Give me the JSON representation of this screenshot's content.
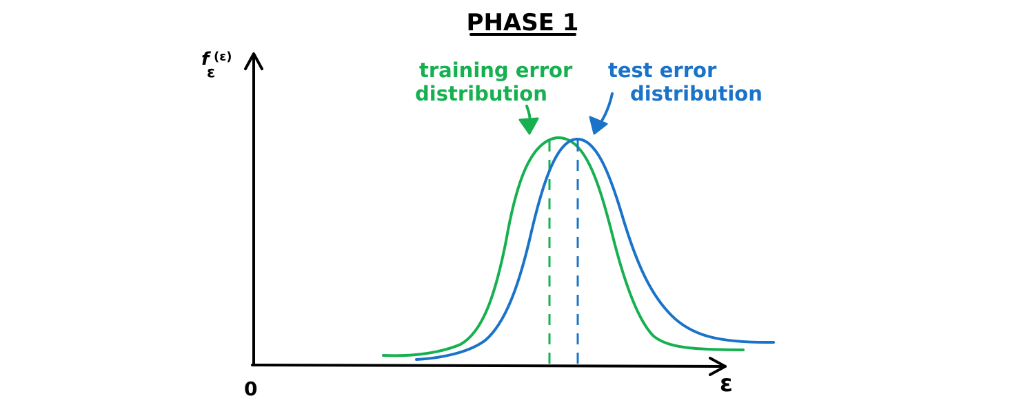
{
  "title": "PHASE 1",
  "y_axis_label": "f",
  "y_axis_subscript": "ε",
  "y_axis_arg": "(ε)",
  "x_axis_label": "ε",
  "origin_label": "0",
  "training": {
    "line1": "training error",
    "line2": "distribution",
    "color": "#16b050"
  },
  "test": {
    "line1": "test error",
    "line2": "distribution",
    "color": "#1a73c8"
  },
  "colors": {
    "axis": "#000000",
    "background": "#ffffff"
  }
}
